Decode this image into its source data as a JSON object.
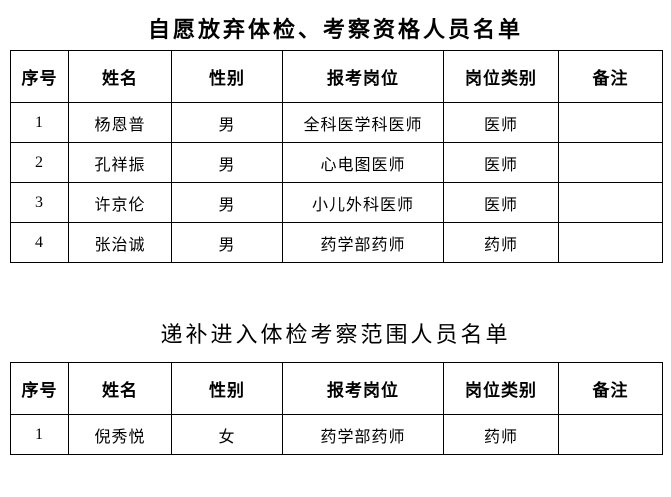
{
  "page": {
    "background": "#ffffff",
    "text_color": "#000000",
    "border_color": "#000000"
  },
  "tables": [
    {
      "title": "自愿放弃体检、考察资格人员名单",
      "columns": [
        "序号",
        "姓名",
        "性别",
        "报考岗位",
        "岗位类别",
        "备注"
      ],
      "rows": [
        [
          "1",
          "杨恩普",
          "男",
          "全科医学科医师",
          "医师",
          ""
        ],
        [
          "2",
          "孔祥振",
          "男",
          "心电图医师",
          "医师",
          ""
        ],
        [
          "3",
          "许京伦",
          "男",
          "小儿外科医师",
          "医师",
          ""
        ],
        [
          "4",
          "张治诚",
          "男",
          "药学部药师",
          "药师",
          ""
        ]
      ]
    },
    {
      "title": "递补进入体检考察范围人员名单",
      "columns": [
        "序号",
        "姓名",
        "性别",
        "报考岗位",
        "岗位类别",
        "备注"
      ],
      "rows": [
        [
          "1",
          "倪秀悦",
          "女",
          "药学部药师",
          "药师",
          ""
        ]
      ]
    }
  ]
}
